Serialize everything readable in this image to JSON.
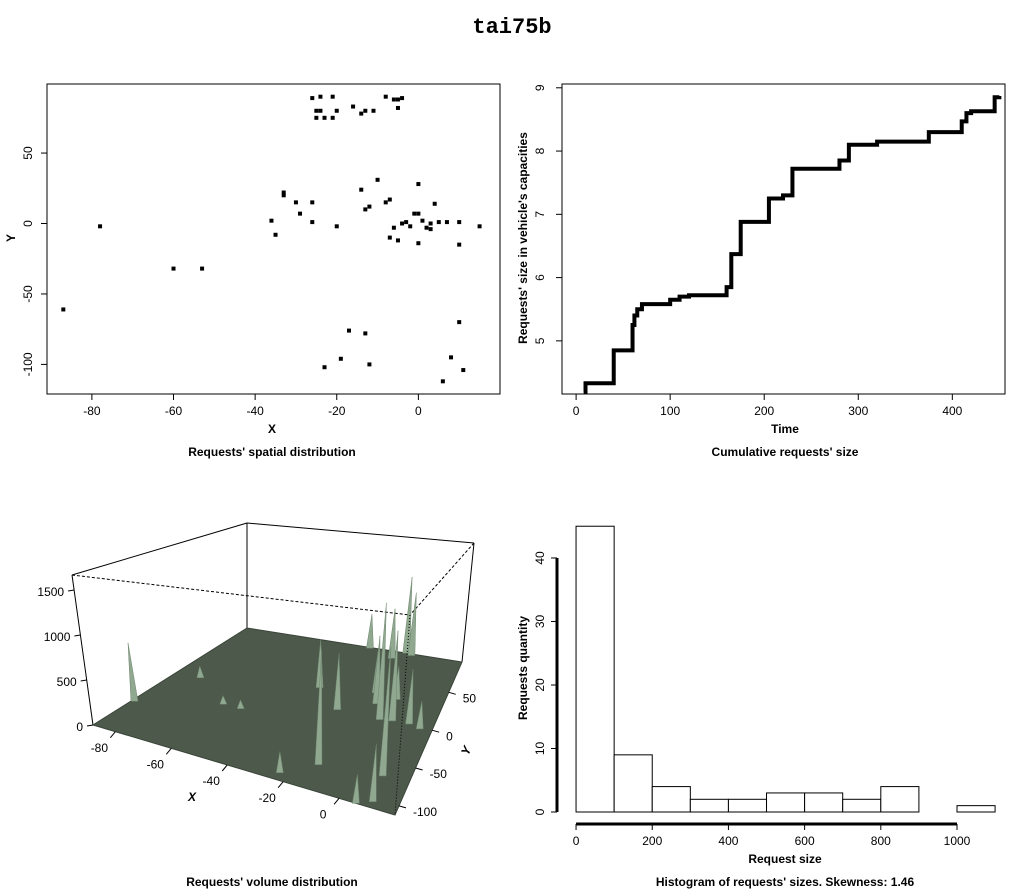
{
  "title": "tai75b",
  "chart_data": [
    {
      "type": "scatter",
      "caption": "Requests' spatial distribution",
      "xlabel": "X",
      "ylabel": "Y",
      "x": [
        -8,
        -26,
        -24,
        -5,
        -4,
        -21,
        -6,
        -16,
        -25,
        -24,
        -20,
        -13,
        -11,
        -14,
        -5,
        -25,
        -23,
        -21,
        -10,
        0,
        -33,
        -14,
        -33,
        -30,
        -26,
        -7,
        -8,
        -12,
        4,
        -13,
        -29,
        -1,
        0,
        -36,
        10,
        -26,
        7,
        -3,
        5,
        1,
        -4,
        -20,
        15,
        -6,
        3,
        2,
        3,
        -2,
        -35,
        -7,
        -5,
        0,
        10,
        -78,
        -60,
        -53,
        -87,
        10,
        -17,
        -13,
        -19,
        -12,
        -23,
        11,
        8,
        6
      ],
      "y": [
        90,
        89,
        90,
        88,
        89,
        90,
        88,
        83,
        80,
        80,
        80,
        80,
        80,
        78,
        82,
        75,
        75,
        75,
        31,
        28,
        22,
        24,
        20,
        15,
        15,
        17,
        15,
        12,
        14,
        10,
        7,
        7,
        7,
        2,
        1,
        1,
        1,
        1,
        1,
        2,
        0,
        -2,
        -2,
        -3,
        0,
        -3,
        -4,
        -2,
        -8,
        -10,
        -12,
        -14,
        -15,
        -2,
        -32,
        -32,
        -61,
        -70,
        -76,
        -78,
        -96,
        -100,
        -102,
        -104,
        -95,
        -112
      ],
      "color": "#000000",
      "xlim": [
        -91,
        20
      ],
      "ylim": [
        -121,
        99
      ],
      "xticks": [
        -80,
        -60,
        -40,
        -20,
        0
      ],
      "yticks": [
        -100,
        -50,
        0,
        50
      ]
    },
    {
      "type": "step",
      "caption": "Cumulative requests' size",
      "xlabel": "Time",
      "ylabel": "Requests' size in vehicle's capacities",
      "x": [
        8,
        10,
        40,
        60,
        62,
        65,
        70,
        100,
        110,
        120,
        160,
        165,
        175,
        205,
        220,
        230,
        280,
        290,
        320,
        375,
        410,
        415,
        420,
        445,
        450
      ],
      "values": [
        4.2,
        4.33,
        4.85,
        5.25,
        5.4,
        5.5,
        5.58,
        5.65,
        5.7,
        5.72,
        5.85,
        6.37,
        6.88,
        7.25,
        7.3,
        7.72,
        7.85,
        8.1,
        8.15,
        8.3,
        8.47,
        8.6,
        8.63,
        8.85,
        8.87
      ],
      "color": "#000000",
      "xlim": [
        -15,
        456
      ],
      "ylim": [
        4.16,
        9.06
      ],
      "xticks": [
        0,
        100,
        200,
        300,
        400
      ],
      "yticks": [
        5,
        6,
        7,
        8,
        9
      ]
    },
    {
      "type": "surface3d",
      "caption": "Requests' volume distribution",
      "xlabel": "X",
      "ylabel": "Y",
      "x": [
        -8,
        -26,
        -5,
        -13,
        -10,
        0,
        -33,
        -7,
        10,
        3,
        -78,
        -20,
        -2,
        15,
        -60,
        -53,
        -87,
        10,
        -13,
        -23,
        11,
        6
      ],
      "y": [
        90,
        89,
        88,
        80,
        31,
        28,
        22,
        17,
        1,
        0,
        -2,
        -2,
        -2,
        -2,
        -32,
        -32,
        -61,
        -70,
        -78,
        -102,
        -104,
        -112
      ],
      "z": [
        1100,
        500,
        900,
        700,
        500,
        400,
        600,
        800,
        600,
        1000,
        150,
        650,
        1300,
        300,
        100,
        100,
        700,
        1200,
        1100,
        200,
        500,
        250
      ],
      "color": "#8fa88f",
      "floor_color": "#4d5a4b",
      "xlim": [
        -88,
        20
      ],
      "ylim": [
        -112,
        90
      ],
      "zlim": [
        0,
        1667
      ],
      "xticks": [
        -80,
        -60,
        -40,
        -20,
        0
      ],
      "yticks": [
        -100,
        -50,
        0,
        50
      ],
      "zticks": [
        0,
        500,
        1000,
        1500
      ]
    },
    {
      "type": "histogram",
      "caption": "Histogram of requests' sizes. Skewness: 1.46",
      "xlabel": "Request size",
      "ylabel": "Requests quantity",
      "bins": [
        0,
        100,
        200,
        300,
        400,
        500,
        600,
        700,
        800,
        900,
        1000,
        1100
      ],
      "values": [
        45,
        9,
        4,
        2,
        2,
        3,
        3,
        2,
        4,
        0,
        1
      ],
      "color": "#ffffff",
      "xlim": [
        -113,
        1126
      ],
      "ylim": [
        -1.89,
        47.24
      ],
      "xticks": [
        0,
        200,
        400,
        600,
        800,
        1000
      ],
      "yticks": [
        0,
        10,
        20,
        30,
        40
      ]
    }
  ]
}
